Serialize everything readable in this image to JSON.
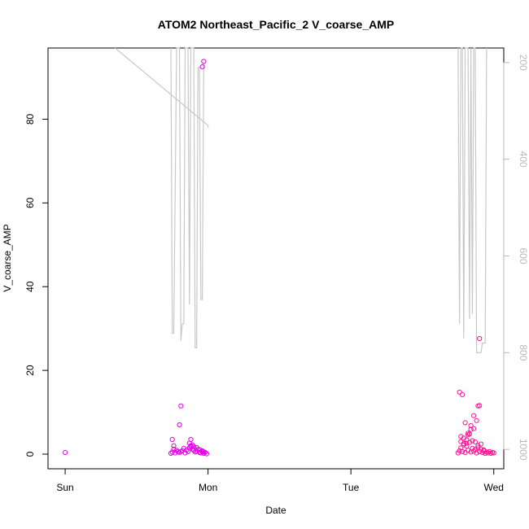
{
  "chart_data": {
    "type": "scatter",
    "title": "ATOM2 Northeast_Pacific_2 V_coarse_AMP",
    "xlabel": "Date",
    "ylabel": "V_coarse_AMP",
    "x_ticks": [
      "Sun",
      "Mon",
      "Tue",
      "Wed"
    ],
    "x_tick_days": [
      0,
      1,
      2,
      3
    ],
    "xlim_days": [
      -0.12,
      3.07
    ],
    "ylim": [
      -3.5,
      97
    ],
    "y_ticks": [
      0,
      20,
      40,
      60,
      80
    ],
    "right_axis": {
      "label": "",
      "inverted": true,
      "range": [
        1040,
        170
      ],
      "ticks": [
        200,
        400,
        600,
        800,
        1000
      ],
      "color": "#b8b8b8"
    },
    "grid": false,
    "legend": "none",
    "colors": {
      "point_magenta": "#e600e6",
      "point_pink": "#ff1493",
      "depth_line": "#c8c8c8"
    },
    "series": [
      {
        "values_note": "",
        "x_days": [
          0.0,
          0.74,
          0.75,
          0.77,
          0.79,
          0.8,
          0.82,
          0.84,
          0.85,
          0.86,
          0.87,
          0.88,
          0.89,
          0.9,
          0.91,
          0.92,
          0.93,
          0.94,
          0.95,
          0.96,
          0.97,
          0.98,
          0.99,
          0.76,
          0.78,
          0.81,
          0.83,
          0.87,
          0.88,
          0.9,
          0.94,
          0.96,
          0.97,
          0.75,
          0.81,
          0.88,
          0.89,
          0.96,
          0.97,
          0.76,
          0.8,
          0.9,
          0.92
        ],
        "y": [
          0.4,
          0.2,
          0.5,
          0.3,
          0.6,
          0.4,
          0.8,
          0.3,
          1.0,
          0.6,
          1.5,
          2.0,
          1.2,
          0.9,
          0.5,
          0.7,
          1.1,
          0.4,
          0.3,
          0.6,
          0.2,
          0.4,
          0.1,
          1.2,
          0.9,
          0.6,
          1.4,
          2.6,
          3.5,
          1.8,
          1.1,
          0.8,
          0.5,
          3.5,
          11.5,
          1.8,
          2.2,
          92.5,
          93.8,
          2.0,
          7.0,
          0.9,
          1.6
        ]
      },
      {
        "x_days": [
          2.75,
          2.76,
          2.77,
          2.78,
          2.79,
          2.8,
          2.81,
          2.82,
          2.83,
          2.84,
          2.85,
          2.86,
          2.87,
          2.88,
          2.89,
          2.9,
          2.91,
          2.92,
          2.93,
          2.94,
          2.95,
          2.96,
          2.97,
          2.98,
          2.99,
          3.0,
          2.77,
          2.79,
          2.81,
          2.83,
          2.85,
          2.87,
          2.89,
          2.91,
          2.93,
          2.78,
          2.8,
          2.82,
          2.84,
          2.86,
          2.88,
          2.76,
          2.77,
          2.79,
          2.81,
          2.82,
          2.84,
          2.86,
          2.89,
          2.9,
          2.9
        ],
        "y": [
          0.3,
          0.8,
          1.5,
          0.6,
          2.2,
          0.4,
          1.9,
          0.9,
          2.8,
          0.5,
          1.4,
          0.7,
          1.1,
          0.3,
          2.0,
          0.6,
          1.2,
          0.4,
          0.8,
          0.2,
          0.5,
          0.3,
          0.6,
          0.2,
          0.4,
          0.3,
          3.0,
          3.8,
          2.6,
          4.8,
          3.2,
          2.9,
          1.5,
          2.4,
          1.0,
          14.2,
          7.5,
          5.0,
          6.8,
          9.2,
          8.0,
          14.8,
          4.2,
          2.5,
          3.4,
          4.6,
          5.9,
          6.1,
          11.5,
          27.6,
          11.6
        ]
      }
    ],
    "depth_line_note": ""
  }
}
